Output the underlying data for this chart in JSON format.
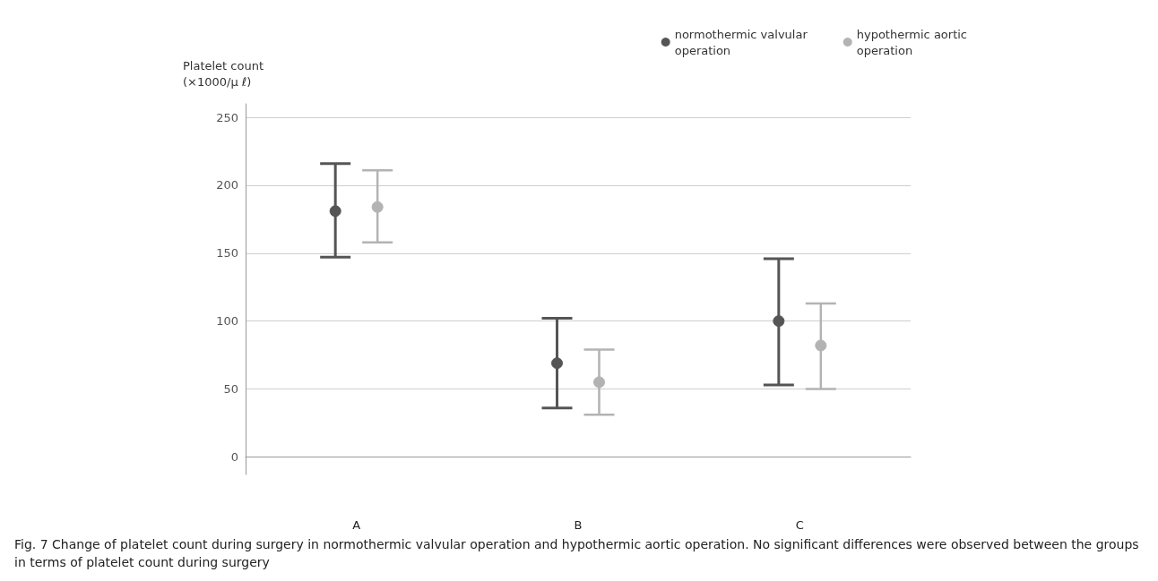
{
  "chart_data": {
    "type": "scatter",
    "ylabel": "Platelet count\n(×1000/μ ℓ)",
    "categories": [
      "A",
      "B",
      "C"
    ],
    "series": [
      {
        "name": "normothermic valvular operation",
        "color": "#555555",
        "values": [
          181,
          69,
          100
        ],
        "errors": [
          [
            147,
            216
          ],
          [
            36,
            102
          ],
          [
            53,
            146
          ]
        ]
      },
      {
        "name": "hypothermic aortic operation",
        "color": "#b3b3b3",
        "values": [
          184,
          55,
          82
        ],
        "errors": [
          [
            158,
            211
          ],
          [
            31,
            79
          ],
          [
            50,
            113
          ]
        ]
      }
    ],
    "ylim": [
      -13,
      260
    ],
    "yticks": [
      0,
      50,
      100,
      150,
      200,
      250
    ],
    "grid": "y",
    "legend": "top right",
    "marker": "circle",
    "annotations": [
      "Fig. 7 Change of platelet count during surgery in normothermic valvular operation and hypothermic aortic operation. No significant differences were observed between the groups in terms of platelet count during surgery"
    ]
  }
}
